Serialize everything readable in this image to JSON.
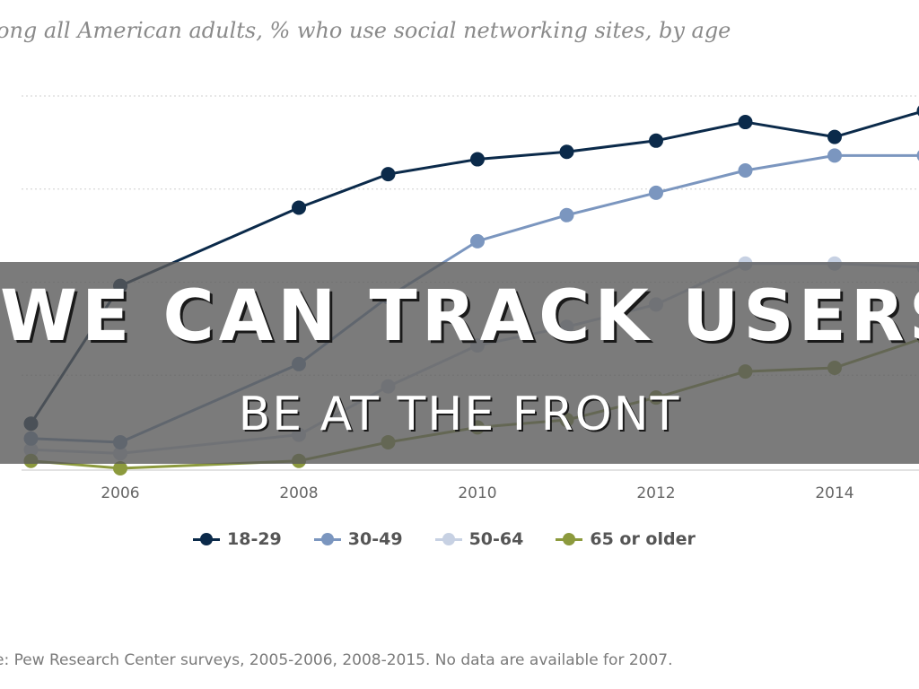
{
  "chart_data": {
    "type": "line",
    "title": "",
    "subtitle": "ong all American adults, % who use social networking sites, by age",
    "xlabel": "",
    "ylabel": "",
    "x_ticks": [
      "2006",
      "2008",
      "2010",
      "2012",
      "2014"
    ],
    "x": [
      2005,
      2006,
      2008,
      2009,
      2010,
      2011,
      2012,
      2013,
      2014,
      2015
    ],
    "ylim": [
      0,
      100
    ],
    "grid": true,
    "legend_position": "bottom",
    "series": [
      {
        "name": "18-29",
        "color": "#0b2a4a",
        "values": [
          12,
          49,
          70,
          79,
          83,
          85,
          88,
          93,
          89,
          96
        ]
      },
      {
        "name": "30-49",
        "color": "#7b96bf",
        "values": [
          8,
          7,
          28,
          46,
          61,
          68,
          74,
          80,
          84,
          84
        ]
      },
      {
        "name": "50-64",
        "color": "#c7d1e3",
        "values": [
          5,
          4,
          9,
          22,
          33,
          38,
          44,
          55,
          55,
          54
        ]
      },
      {
        "name": "65 or older",
        "color": "#8c9a3d",
        "values": [
          2,
          0,
          2,
          7,
          11,
          13,
          19,
          26,
          27,
          35
        ]
      }
    ]
  },
  "overlay": {
    "title": "WE CAN TRACK USERS",
    "subtitle": "BE AT THE FRONT"
  },
  "source_note": "e: Pew Research Center surveys, 2005-2006, 2008-2015. No data are available for 2007."
}
